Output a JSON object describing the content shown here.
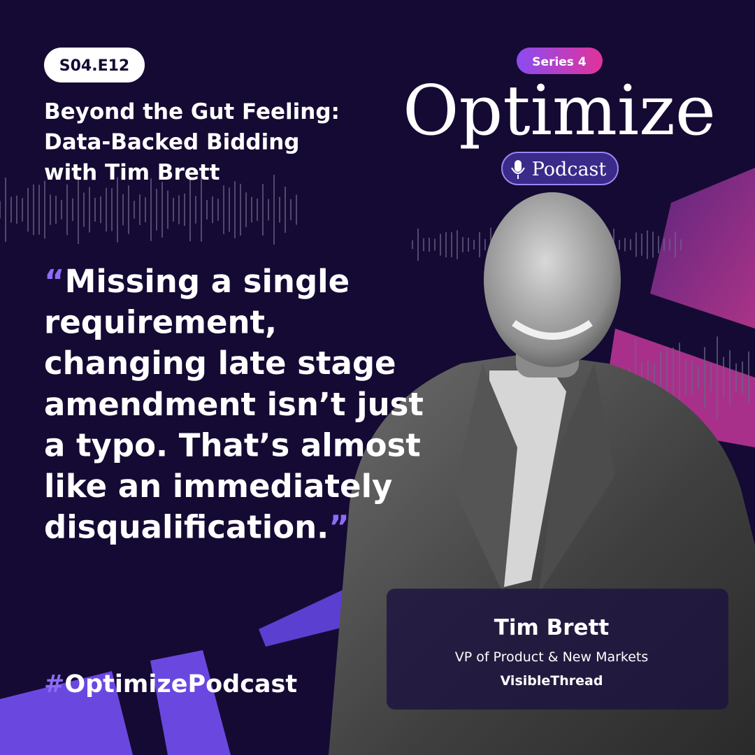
{
  "episode_badge": "S04.E12",
  "episode_title": [
    "Beyond the Gut Feeling:",
    "Data-Backed Bidding",
    "with Tim Brett"
  ],
  "series_badge": "Series 4",
  "brand": {
    "name": "Optimize",
    "subtitle": "Podcast"
  },
  "quote": {
    "open_mark": "“",
    "close_mark": "”",
    "lines": [
      "Missing a single",
      "requirement,",
      "changing late stage",
      "amendment isn’t just",
      "a typo. That’s almost",
      "like an immediately",
      "disqualification."
    ]
  },
  "hashtag": {
    "symbol": "#",
    "text": "OptimizePodcast"
  },
  "guest": {
    "name": "Tim Brett",
    "role": "VP of Product & New Markets",
    "company": "VisibleThread"
  }
}
